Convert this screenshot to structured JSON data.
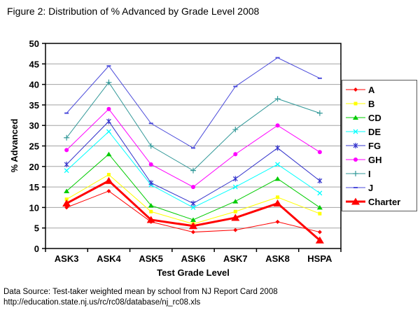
{
  "title": "Figure 2: Distribution of % Advanced by Grade Level 2008",
  "footer": {
    "line1": "Data Source: Test-taker weighted mean by school from NJ Report Card 2008",
    "line2": "http://education.state.nj.us/rc/rc08/database/nj_rc08.xls"
  },
  "chart_data": {
    "type": "line",
    "title": "Figure 2: Distribution of % Advanced by Grade Level 2008",
    "xlabel": "Test Grade Level",
    "ylabel": "% Advanced",
    "ylim": [
      0,
      50
    ],
    "ytick_step": 5,
    "grid": true,
    "legend_position": "right",
    "grid_color": "#A3A3A3",
    "categories": [
      "ASK3",
      "ASK4",
      "ASK5",
      "ASK6",
      "ASK7",
      "ASK8",
      "HSPA"
    ],
    "series": [
      {
        "name": "A",
        "color": "#FF0000",
        "marker": "diamond",
        "line_width": 1,
        "values": [
          10,
          14,
          6.5,
          4,
          4.5,
          6.5,
          4
        ]
      },
      {
        "name": "B",
        "color": "#FFFF00",
        "marker": "square",
        "line_width": 1,
        "values": [
          12,
          18,
          9,
          6,
          9,
          12.5,
          8.5
        ]
      },
      {
        "name": "CD",
        "color": "#00CC00",
        "marker": "triangle",
        "line_width": 1,
        "values": [
          14,
          23,
          10.5,
          7,
          11.5,
          17,
          10
        ]
      },
      {
        "name": "DE",
        "color": "#00FFFF",
        "marker": "x",
        "line_width": 1,
        "values": [
          19,
          28.5,
          15.5,
          10,
          15,
          20.5,
          13.5
        ]
      },
      {
        "name": "FG",
        "color": "#3333CC",
        "marker": "asterisk",
        "line_width": 1,
        "values": [
          20.5,
          31,
          16,
          11,
          17,
          24.5,
          16.5
        ]
      },
      {
        "name": "GH",
        "color": "#FF00FF",
        "marker": "circle",
        "line_width": 1,
        "values": [
          24,
          34,
          20.5,
          15,
          23,
          30,
          23.5
        ]
      },
      {
        "name": "I",
        "color": "#339999",
        "marker": "plus",
        "line_width": 1,
        "values": [
          27,
          40.5,
          25,
          19,
          29,
          36.5,
          33
        ]
      },
      {
        "name": "J",
        "color": "#4D4DDB",
        "marker": "dash",
        "line_width": 1,
        "values": [
          33,
          44.5,
          30.5,
          24.5,
          39.5,
          46.5,
          41.5
        ]
      },
      {
        "name": "Charter",
        "color": "#FF0000",
        "marker": "triangle-big",
        "line_width": 3,
        "values": [
          11,
          16.5,
          7,
          5.5,
          7.5,
          11,
          2
        ]
      }
    ]
  }
}
